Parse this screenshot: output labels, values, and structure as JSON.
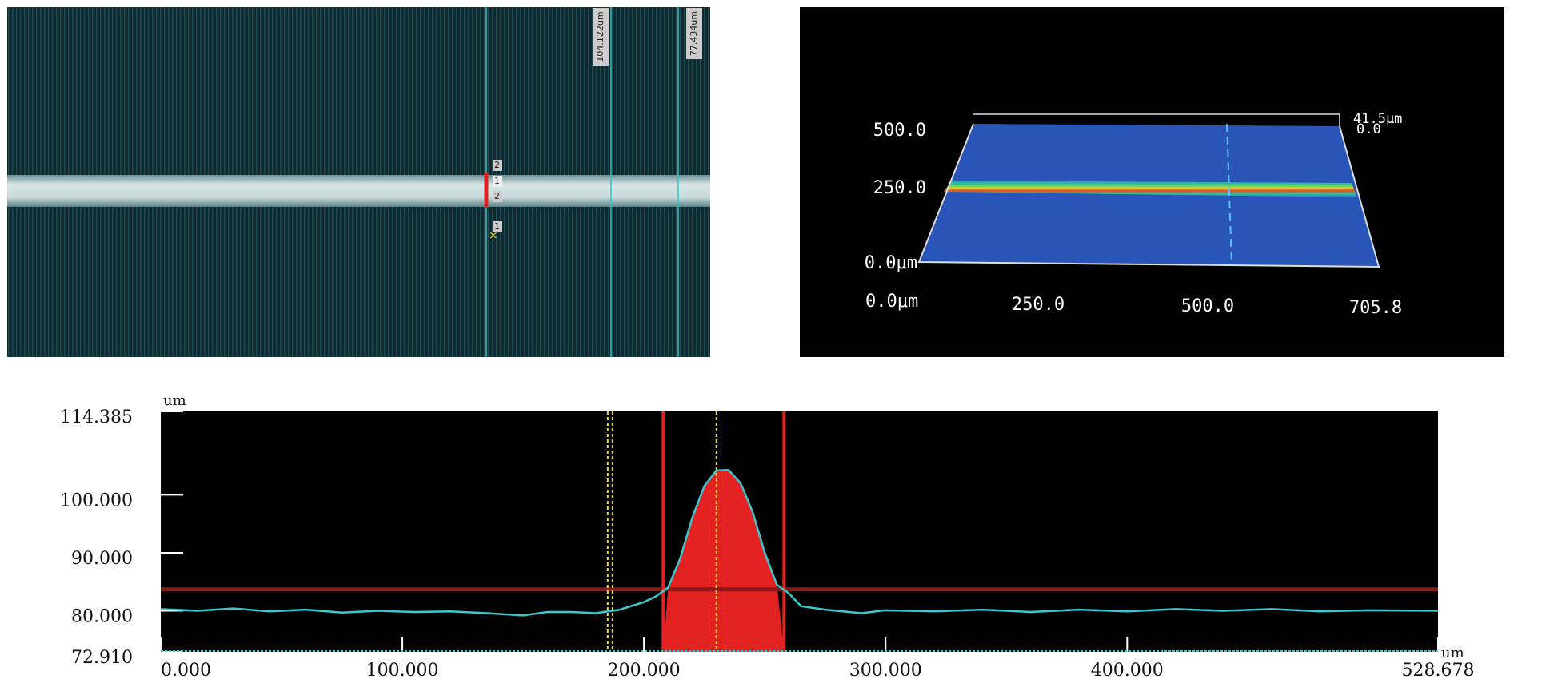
{
  "images": {
    "left": {
      "measure_1": "104.122um",
      "measure_2": "77.434um",
      "cursor_labels": [
        "2",
        "1",
        "2",
        "1"
      ]
    },
    "right": {
      "y_labels": [
        "500.0",
        "250.0",
        "0.0μm"
      ],
      "x_labels": [
        "0.0μm",
        "250.0",
        "500.0",
        "705.8"
      ],
      "z_top": "41.5μm",
      "z_bottom": "0.0"
    }
  },
  "chart_data": {
    "type": "line",
    "y_label": "um",
    "x_label": "um",
    "color": "#3cc8d0",
    "x": [
      0,
      15,
      30,
      45,
      60,
      75,
      90,
      105,
      120,
      135,
      150,
      160,
      170,
      180,
      190,
      200,
      205,
      210,
      215,
      220,
      225,
      230,
      235,
      240,
      245,
      250,
      255,
      260,
      265,
      275,
      290,
      300,
      320,
      340,
      360,
      380,
      400,
      420,
      440,
      460,
      480,
      500,
      528.678
    ],
    "values": [
      80.3,
      80.0,
      80.4,
      79.9,
      80.2,
      79.7,
      80.0,
      79.8,
      79.9,
      79.6,
      79.2,
      79.8,
      79.8,
      79.6,
      80.2,
      81.5,
      82.5,
      84.0,
      89.0,
      96.0,
      101.5,
      104.2,
      104.3,
      102.0,
      97.0,
      90.0,
      84.5,
      83.0,
      80.8,
      80.2,
      79.6,
      80.1,
      79.9,
      80.2,
      79.8,
      80.2,
      79.9,
      80.3,
      80.0,
      80.3,
      79.9,
      80.1,
      80.0
    ],
    "xlim": [
      0,
      528.678
    ],
    "ylim": [
      72.91,
      114.385
    ],
    "xticks": [
      {
        "value": 0,
        "label": "0.000"
      },
      {
        "value": 100,
        "label": "100.000"
      },
      {
        "value": 200,
        "label": "200.000"
      },
      {
        "value": 300,
        "label": "300.000"
      },
      {
        "value": 400,
        "label": "400.000"
      },
      {
        "value": 528.678,
        "label": "528.678"
      }
    ],
    "yticks": [
      {
        "value": 72.91,
        "label": "72.910"
      },
      {
        "value": 80,
        "label": "80.000"
      },
      {
        "value": 90,
        "label": "90.000"
      },
      {
        "value": 100,
        "label": "100.000"
      },
      {
        "value": 114.385,
        "label": "114.385"
      }
    ],
    "cursor_lines": [
      208,
      258
    ],
    "reference_lines": [
      185,
      187,
      230
    ],
    "threshold": 83.7,
    "grid": false
  }
}
